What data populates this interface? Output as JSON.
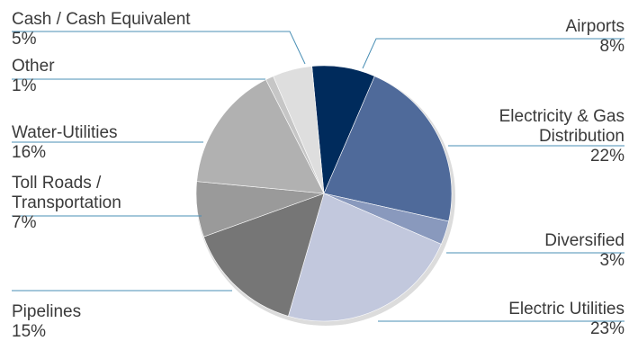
{
  "chart_data": {
    "type": "pie",
    "title": "",
    "unit": "%",
    "slices": [
      {
        "label": "Airports",
        "value": 8,
        "value_text": "8%",
        "color": "#002b5c"
      },
      {
        "label": "Electricity & Gas Distribution",
        "label_lines": [
          "Electricity & Gas",
          "Distribution"
        ],
        "value": 22,
        "value_text": "22%",
        "color": "#4f6a9a"
      },
      {
        "label": "Diversified",
        "value": 3,
        "value_text": "3%",
        "color": "#8999bd"
      },
      {
        "label": "Electric Utilities",
        "value": 23,
        "value_text": "23%",
        "color": "#c2c8dd"
      },
      {
        "label": "Pipelines",
        "value": 15,
        "value_text": "15%",
        "color": "#767676"
      },
      {
        "label": "Toll Roads / Transportation",
        "label_lines": [
          "Toll Roads /",
          "Transportation"
        ],
        "value": 7,
        "value_text": "7%",
        "color": "#9a9a9a"
      },
      {
        "label": "Water-Utilities",
        "value": 16,
        "value_text": "16%",
        "color": "#b1b1b1"
      },
      {
        "label": "Other",
        "value": 1,
        "value_text": "1%",
        "color": "#c6c6c6"
      },
      {
        "label": "Cash / Cash Equivalent",
        "value": 5,
        "value_text": "5%",
        "color": "#dedede"
      }
    ]
  }
}
